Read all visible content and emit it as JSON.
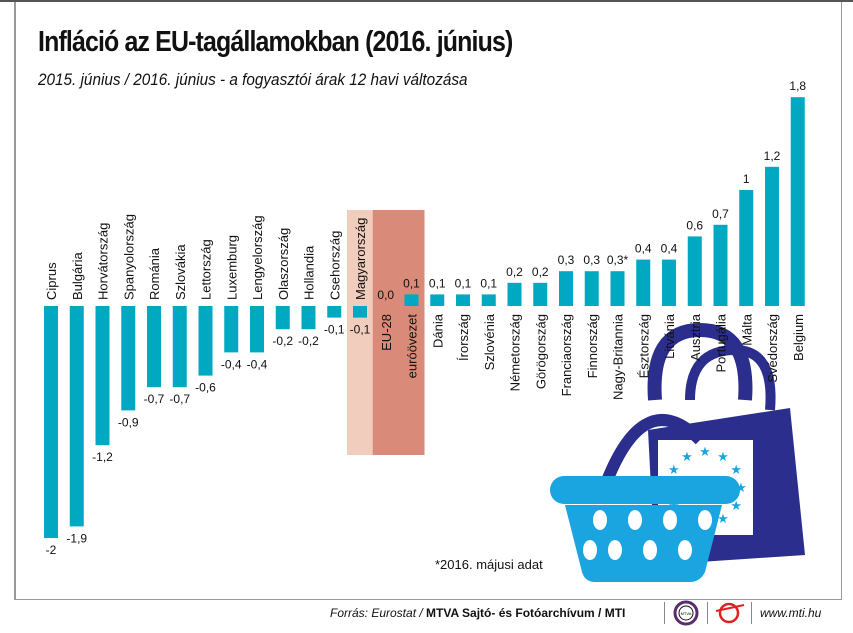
{
  "title": "Infláció az EU-tagállamokban (2016. június)",
  "subtitle": "2015. június / 2016. június - a fogyasztói árak 12 havi változása",
  "note": "*2016. májusi adat",
  "footer": {
    "source_prefix": "Forrás: Eurostat / ",
    "source_bold": "MTVA Sajtó- és Fotóarchívum / MTI",
    "website": "www.mti.hu",
    "logo_mtva": "MTVA"
  },
  "colors": {
    "bar": "#00a8c2",
    "highlight_hu": "#f0cdbd",
    "highlight_eu": "#d98a79",
    "bag": "#2b2e8c",
    "basket": "#1aa4e0"
  },
  "chart_data": {
    "type": "bar",
    "title": "Infláció az EU-tagállamokban (2016. június)",
    "categories": [
      "Ciprus",
      "Bulgária",
      "Horvátország",
      "Spanyolország",
      "Románia",
      "Szlovákia",
      "Lettország",
      "Luxemburg",
      "Lengyelország",
      "Olaszország",
      "Hollandia",
      "Csehország",
      "Magyarország",
      "EU-28",
      "euróövezet",
      "Dánia",
      "Írország",
      "Szlovénia",
      "Németország",
      "Görögország",
      "Franciaország",
      "Finnország",
      "Nagy-Britannia",
      "Észtország",
      "Litvánia",
      "Ausztria",
      "Portugália",
      "Málta",
      "Svédország",
      "Belgium"
    ],
    "values": [
      -2,
      -1.9,
      -1.2,
      -0.9,
      -0.7,
      -0.7,
      -0.6,
      -0.4,
      -0.4,
      -0.2,
      -0.2,
      -0.1,
      -0.1,
      0.0,
      0.1,
      0.1,
      0.1,
      0.1,
      0.2,
      0.2,
      0.3,
      0.3,
      0.3,
      0.4,
      0.4,
      0.6,
      0.7,
      1,
      1.2,
      1.8
    ],
    "labels": [
      "-2",
      "-1,9",
      "-1,2",
      "-0,9",
      "-0,7",
      "-0,7",
      "-0,6",
      "-0,4",
      "-0,4",
      "-0,2",
      "-0,2",
      "-0,1",
      "-0,1",
      "0,0",
      "0,1",
      "0,1",
      "0,1",
      "0,1",
      "0,2",
      "0,2",
      "0,3",
      "0,3",
      "0,3*",
      "0,4",
      "0,4",
      "0,6",
      "0,7",
      "1",
      "1,2",
      "1,8"
    ],
    "highlighted": {
      "Magyarország": "light",
      "EU-28": "dark",
      "euróövezet": "dark"
    },
    "grid": false,
    "legend": "none"
  }
}
